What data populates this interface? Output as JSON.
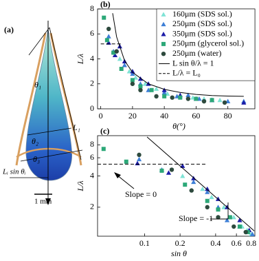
{
  "panel_a": {
    "label": "(a)",
    "annotations": [
      "θ₁",
      "L₁",
      "θ₂",
      "θ₃",
      "Lᵢ sin θᵢ",
      "1 mm"
    ]
  },
  "chart_data": [
    {
      "type": "scatter",
      "panel_label": "(b)",
      "xlabel": "θ(°)",
      "ylabel": "L/λ",
      "xlim": [
        -2,
        97
      ],
      "ylim": [
        0,
        8
      ],
      "xticks": [
        0,
        20,
        40,
        60,
        80
      ],
      "yticks": [
        0,
        2,
        4,
        6,
        8
      ],
      "legend": "upper right",
      "series": [
        {
          "name": "160μm (SDS sol.)",
          "color": "#7fe3d6",
          "marker": "triangle",
          "x": [
            12,
            18,
            22,
            28,
            35,
            42,
            50,
            58,
            65,
            75
          ],
          "values": [
            4.0,
            3.0,
            2.5,
            2.0,
            1.6,
            1.2,
            1.0,
            0.9,
            0.8,
            0.7
          ]
        },
        {
          "name": "250μm (SDS sol.)",
          "color": "#3d7fd6",
          "marker": "triangle",
          "x": [
            5,
            8,
            15,
            20,
            25,
            30,
            40,
            48,
            55,
            62,
            70,
            80,
            90
          ],
          "values": [
            5.8,
            4.6,
            3.5,
            2.8,
            2.0,
            1.5,
            1.3,
            1.0,
            1.1,
            0.8,
            0.7,
            0.6,
            0.6
          ]
        },
        {
          "name": "350μm (SDS sol.)",
          "color": "#1c1ca8",
          "marker": "triangle",
          "x": [
            5,
            9,
            12,
            15,
            20,
            25,
            30,
            40,
            50,
            60,
            70,
            90
          ],
          "values": [
            5.3,
            4.3,
            5.0,
            3.8,
            3.0,
            2.4,
            2.0,
            1.5,
            1.1,
            0.8,
            0.7,
            0.5
          ]
        },
        {
          "name": "250μm (glycerol sol.)",
          "color": "#2ca878",
          "marker": "square",
          "x": [
            2,
            4,
            8,
            13,
            20,
            25,
            32,
            40,
            50,
            60,
            70
          ],
          "values": [
            7.3,
            5.5,
            4.5,
            3.2,
            2.3,
            1.8,
            1.5,
            1.0,
            0.9,
            0.8,
            0.7
          ]
        },
        {
          "name": "250μm (water)",
          "color": "#2e4a3e",
          "marker": "circle",
          "x": [
            5,
            10,
            20,
            25,
            35,
            45,
            55,
            65,
            78
          ],
          "values": [
            6.4,
            4.6,
            2.0,
            1.5,
            1.0,
            0.9,
            0.8,
            0.6,
            0.5
          ]
        },
        {
          "name": "L sin θ/λ = 1",
          "color": "#000000",
          "style": "solid",
          "x": [
            7.5,
            10,
            15,
            20,
            30,
            40,
            50,
            60,
            70,
            80,
            90
          ],
          "values": [
            7.66,
            5.76,
            3.86,
            2.92,
            2.0,
            1.56,
            1.31,
            1.15,
            1.06,
            1.02,
            1.0
          ]
        },
        {
          "name": "L/λ = L₀",
          "color": "#000000",
          "style": "dashed",
          "x": [
            0,
            13
          ],
          "values": [
            5.2,
            5.2
          ]
        }
      ]
    },
    {
      "type": "scatter",
      "panel_label": "(c)",
      "xlabel": "sin θ",
      "ylabel": "L/λ",
      "xscale": "log",
      "yscale": "log",
      "xlim": [
        0.04,
        0.86
      ],
      "ylim": [
        1.05,
        9.8
      ],
      "xticks": [
        0.1,
        0.2,
        0.4,
        0.6,
        0.8
      ],
      "yticks": [
        2,
        4,
        6,
        8
      ],
      "annotations": [
        "Slope = 0",
        "Slope = -1"
      ],
      "series": [
        {
          "color": "#7fe3d6",
          "marker": "triangle",
          "x": [
            0.21,
            0.31,
            0.37,
            0.47,
            0.57,
            0.67,
            0.74,
            0.8
          ],
          "values": [
            4.0,
            3.0,
            2.5,
            2.0,
            1.6,
            1.3,
            1.2,
            1.1
          ]
        },
        {
          "color": "#3d7fd6",
          "marker": "triangle",
          "x": [
            0.09,
            0.14,
            0.26,
            0.34,
            0.42,
            0.5,
            0.64,
            0.75,
            0.82
          ],
          "values": [
            5.8,
            4.6,
            3.5,
            2.8,
            2.0,
            1.5,
            1.3,
            1.15,
            1.1
          ]
        },
        {
          "color": "#1c1ca8",
          "marker": "triangle",
          "x": [
            0.087,
            0.16,
            0.21,
            0.26,
            0.34,
            0.42,
            0.5,
            0.64,
            0.77
          ],
          "values": [
            5.3,
            4.3,
            5.0,
            3.8,
            3.0,
            2.4,
            2.0,
            1.5,
            1.2
          ]
        },
        {
          "color": "#2ca878",
          "marker": "square",
          "x": [
            0.045,
            0.07,
            0.14,
            0.22,
            0.34,
            0.42,
            0.53,
            0.64,
            0.75
          ],
          "values": [
            7.3,
            5.5,
            4.5,
            3.3,
            2.3,
            1.9,
            1.6,
            1.3,
            1.15
          ]
        },
        {
          "color": "#2e4a3e",
          "marker": "circle",
          "x": [
            0.09,
            0.17,
            0.25,
            0.34,
            0.42,
            0.57,
            0.72
          ],
          "values": [
            6.4,
            4.6,
            2.9,
            2.0,
            1.6,
            1.3,
            1.15
          ]
        },
        {
          "color": "#000000",
          "style": "solid",
          "x": [
            0.105,
            0.85
          ],
          "values": [
            9.52,
            1.18
          ]
        },
        {
          "color": "#000000",
          "style": "dashed",
          "x": [
            0.04,
            0.33
          ],
          "values": [
            5.2,
            5.2
          ]
        }
      ]
    }
  ]
}
